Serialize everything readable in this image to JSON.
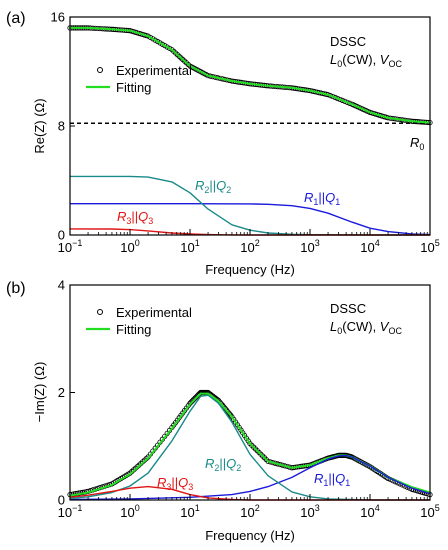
{
  "colors": {
    "experimental": "#000000",
    "fitting": "#22dd22",
    "r0_line": "#000000",
    "r1q1": "#1a1adb",
    "r2q2": "#1a8a8a",
    "r3q3": "#e01515"
  },
  "chart_data": [
    {
      "type": "line",
      "panel_label": "(a)",
      "xlabel": "Frequency (Hz)",
      "ylabel": "Re(Z) (Ω)",
      "xscale": "log",
      "xlim": [
        0.1,
        100000
      ],
      "ylim": [
        0,
        16
      ],
      "x_tick_values": [
        0.1,
        1,
        10,
        100,
        1000,
        10000,
        100000
      ],
      "x_tick_bases": [
        "10",
        "10",
        "10",
        "10",
        "10",
        "10",
        "10"
      ],
      "x_tick_exps": [
        "−1",
        "0",
        "1",
        "2",
        "3",
        "4",
        "5"
      ],
      "y_ticks": [
        0,
        8,
        16
      ],
      "y_tick_labels": [
        "0",
        "8",
        "16"
      ],
      "legend": {
        "placement": "upper-left",
        "entries": [
          "Experimental",
          "Fitting"
        ]
      },
      "info_lines": [
        "DSSC",
        "L0(CW), VOC"
      ],
      "info_title": "DSSC",
      "info_l": "L",
      "info_l_sub": "0",
      "info_cw": "(CW), ",
      "info_v": "V",
      "info_v_sub": "OC",
      "reference_line": {
        "y": 8.2,
        "label": "R0",
        "label_main": "R",
        "label_sub": "0"
      },
      "series": [
        {
          "name": "Experimental",
          "style": "markers",
          "x": [
            0.1,
            0.2,
            0.5,
            1,
            2,
            5,
            10,
            20,
            50,
            100,
            200,
            500,
            1000,
            2000,
            5000,
            10000,
            20000,
            50000,
            100000
          ],
          "y": [
            15.2,
            15.2,
            15.1,
            15.0,
            14.6,
            13.6,
            12.4,
            11.7,
            11.3,
            11.1,
            10.95,
            10.8,
            10.6,
            10.3,
            9.6,
            9.0,
            8.6,
            8.35,
            8.25
          ]
        },
        {
          "name": "Fitting",
          "style": "line",
          "x": [
            0.1,
            0.2,
            0.5,
            1,
            2,
            5,
            10,
            20,
            50,
            100,
            200,
            500,
            1000,
            2000,
            5000,
            10000,
            20000,
            50000,
            100000
          ],
          "y": [
            15.2,
            15.2,
            15.1,
            15.0,
            14.6,
            13.6,
            12.4,
            11.7,
            11.3,
            11.1,
            10.95,
            10.8,
            10.6,
            10.3,
            9.6,
            9.0,
            8.6,
            8.35,
            8.25
          ]
        },
        {
          "name": "R1||Q1",
          "label_parts": [
            "R",
            "1",
            "||",
            "Q",
            "1"
          ],
          "style": "component",
          "x": [
            0.1,
            1,
            10,
            100,
            200,
            500,
            1000,
            2000,
            5000,
            10000,
            20000,
            50000,
            100000
          ],
          "y": [
            2.3,
            2.3,
            2.3,
            2.28,
            2.25,
            2.15,
            1.95,
            1.6,
            0.95,
            0.5,
            0.25,
            0.08,
            0.03
          ]
        },
        {
          "name": "R2||Q2",
          "label_parts": [
            "R",
            "2",
            "||",
            "Q",
            "2"
          ],
          "style": "component",
          "x": [
            0.1,
            1,
            2,
            5,
            10,
            20,
            50,
            100,
            200,
            500,
            1000,
            10000,
            100000
          ],
          "y": [
            4.3,
            4.3,
            4.25,
            3.9,
            3.1,
            1.9,
            0.75,
            0.35,
            0.15,
            0.05,
            0.02,
            0,
            0
          ]
        },
        {
          "name": "R3||Q3",
          "label_parts": [
            "R",
            "3",
            "||",
            "Q",
            "3"
          ],
          "style": "component",
          "x": [
            0.1,
            0.5,
            1,
            2,
            5,
            10,
            20,
            50,
            100,
            1000,
            100000
          ],
          "y": [
            0.45,
            0.44,
            0.4,
            0.3,
            0.15,
            0.07,
            0.03,
            0.01,
            0,
            0,
            0
          ]
        }
      ]
    },
    {
      "type": "line",
      "panel_label": "(b)",
      "xlabel": "Frequency (Hz)",
      "ylabel": "−Im(Z) (Ω)",
      "xscale": "log",
      "xlim": [
        0.1,
        100000
      ],
      "ylim": [
        0,
        4
      ],
      "x_tick_values": [
        0.1,
        1,
        10,
        100,
        1000,
        10000,
        100000
      ],
      "x_tick_bases": [
        "10",
        "10",
        "10",
        "10",
        "10",
        "10",
        "10"
      ],
      "x_tick_exps": [
        "−1",
        "0",
        "1",
        "2",
        "3",
        "4",
        "5"
      ],
      "y_ticks": [
        0,
        2,
        4
      ],
      "y_tick_labels": [
        "0",
        "2",
        "4"
      ],
      "legend": {
        "placement": "upper-left",
        "entries": [
          "Experimental",
          "Fitting"
        ]
      },
      "info_lines": [
        "DSSC",
        "L0(CW), VOC"
      ],
      "info_title": "DSSC",
      "info_l": "L",
      "info_l_sub": "0",
      "info_cw": "(CW), ",
      "info_v": "V",
      "info_v_sub": "OC",
      "series": [
        {
          "name": "Experimental",
          "style": "markers",
          "x": [
            0.1,
            0.2,
            0.5,
            1,
            2,
            5,
            10,
            15,
            20,
            30,
            50,
            100,
            200,
            500,
            1000,
            2000,
            3000,
            4000,
            5000,
            10000,
            20000,
            50000,
            100000
          ],
          "y": [
            0.1,
            0.16,
            0.3,
            0.5,
            0.8,
            1.35,
            1.8,
            2.0,
            2.0,
            1.85,
            1.55,
            1.05,
            0.72,
            0.6,
            0.65,
            0.78,
            0.83,
            0.83,
            0.8,
            0.62,
            0.4,
            0.2,
            0.1
          ]
        },
        {
          "name": "Fitting",
          "style": "line",
          "x": [
            0.1,
            0.2,
            0.5,
            1,
            2,
            5,
            10,
            15,
            20,
            30,
            50,
            100,
            200,
            500,
            1000,
            2000,
            3000,
            4000,
            5000,
            10000,
            20000,
            50000,
            100000
          ],
          "y": [
            0.08,
            0.14,
            0.28,
            0.48,
            0.78,
            1.33,
            1.78,
            1.98,
            1.98,
            1.84,
            1.55,
            1.05,
            0.72,
            0.6,
            0.65,
            0.78,
            0.83,
            0.83,
            0.8,
            0.63,
            0.42,
            0.24,
            0.14
          ]
        },
        {
          "name": "R1||Q1",
          "label_parts": [
            "R",
            "1",
            "||",
            "Q",
            "1"
          ],
          "style": "component",
          "x": [
            0.1,
            1,
            10,
            50,
            100,
            200,
            500,
            1000,
            2000,
            3000,
            4000,
            5000,
            10000,
            20000,
            50000,
            100000
          ],
          "y": [
            0.01,
            0.02,
            0.05,
            0.1,
            0.16,
            0.25,
            0.42,
            0.6,
            0.76,
            0.82,
            0.83,
            0.8,
            0.63,
            0.42,
            0.22,
            0.12
          ]
        },
        {
          "name": "R2||Q2",
          "label_parts": [
            "R",
            "2",
            "||",
            "Q",
            "2"
          ],
          "style": "component",
          "x": [
            0.1,
            0.2,
            0.5,
            1,
            2,
            5,
            10,
            15,
            20,
            30,
            50,
            100,
            200,
            500,
            1000,
            2000,
            10000,
            100000
          ],
          "y": [
            0.03,
            0.06,
            0.14,
            0.26,
            0.5,
            1.1,
            1.65,
            1.93,
            1.95,
            1.8,
            1.45,
            0.85,
            0.45,
            0.15,
            0.06,
            0.02,
            0,
            0
          ]
        },
        {
          "name": "R3||Q3",
          "label_parts": [
            "R",
            "3",
            "||",
            "Q",
            "3"
          ],
          "style": "component",
          "x": [
            0.1,
            0.2,
            0.5,
            1,
            2,
            5,
            10,
            20,
            50,
            100,
            1000,
            100000
          ],
          "y": [
            0.05,
            0.09,
            0.16,
            0.22,
            0.25,
            0.2,
            0.1,
            0.04,
            0.01,
            0,
            0,
            0
          ]
        }
      ]
    }
  ]
}
